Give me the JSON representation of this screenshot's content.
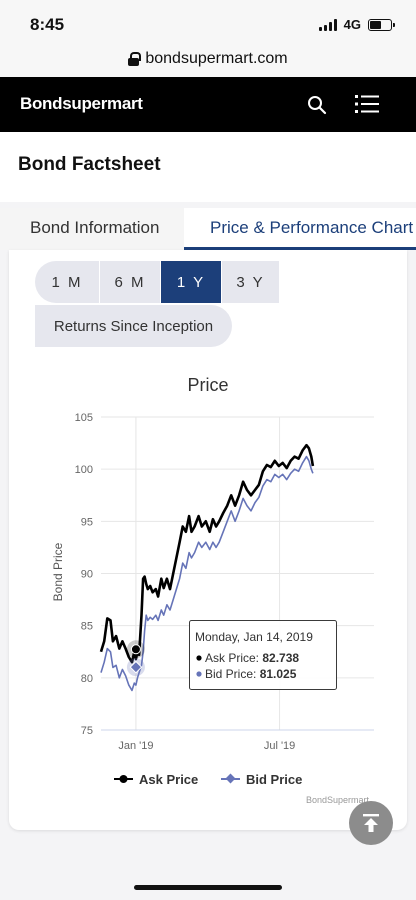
{
  "status": {
    "time": "8:45",
    "network": "4G"
  },
  "browser": {
    "url": "bondsupermart.com"
  },
  "header": {
    "logo": "Bondsupermart"
  },
  "page": {
    "title": "Bond Factsheet"
  },
  "tabs": [
    {
      "label": "Bond Information",
      "active": false
    },
    {
      "label": "Price & Performance Chart",
      "active": true
    }
  ],
  "periods": [
    {
      "label": "1 M",
      "active": false
    },
    {
      "label": "6 M",
      "active": false
    },
    {
      "label": "1 Y",
      "active": true
    },
    {
      "label": "3 Y",
      "active": false
    },
    {
      "label": "Returns Since Inception",
      "active": false
    }
  ],
  "tooltip": {
    "date": "Monday, Jan 14, 2019",
    "ask_label": "Ask Price: ",
    "ask_value": "82.738",
    "bid_label": "Bid Price: ",
    "bid_value": "81.025"
  },
  "watermark": "BondSupermart",
  "colors": {
    "ask": "#000000",
    "bid": "#6674b8",
    "accent": "#1c3f7a"
  },
  "chart_data": {
    "type": "line",
    "title": "Price",
    "ylabel": "Bond Price",
    "ylim": [
      75,
      105
    ],
    "yticks": [
      75,
      80,
      85,
      90,
      95,
      100,
      105
    ],
    "xtick_labels": [
      "Jan '19",
      "Jul '19"
    ],
    "xlim_days": [
      -44,
      300
    ],
    "xtick_days": [
      0,
      181
    ],
    "legend_position": "bottom",
    "series": [
      {
        "name": "Ask Price",
        "color": "#000000",
        "points": [
          [
            -44,
            82.5
          ],
          [
            -40,
            83.5
          ],
          [
            -36,
            85.7
          ],
          [
            -32,
            85.5
          ],
          [
            -29,
            83.5
          ],
          [
            -25,
            84
          ],
          [
            -21,
            82.8
          ],
          [
            -17,
            83.5
          ],
          [
            -13,
            82.8
          ],
          [
            -9,
            82
          ],
          [
            -5,
            81.5
          ],
          [
            -2,
            82.5
          ],
          [
            0,
            81.8
          ],
          [
            2,
            82.5
          ],
          [
            4,
            82.2
          ],
          [
            7,
            86
          ],
          [
            9,
            89.5
          ],
          [
            11,
            89.7
          ],
          [
            13,
            89
          ],
          [
            15,
            88.5
          ],
          [
            18,
            88.8
          ],
          [
            21,
            88.2
          ],
          [
            25,
            88.5
          ],
          [
            28,
            87.8
          ],
          [
            32,
            89.5
          ],
          [
            35,
            88.6
          ],
          [
            39,
            89.5
          ],
          [
            43,
            88.5
          ],
          [
            47,
            90
          ],
          [
            51,
            91.5
          ],
          [
            55,
            93
          ],
          [
            59,
            94.5
          ],
          [
            63,
            94
          ],
          [
            67,
            95.5
          ],
          [
            70,
            94
          ],
          [
            74,
            94.5
          ],
          [
            79,
            95.5
          ],
          [
            83,
            94.5
          ],
          [
            88,
            95
          ],
          [
            93,
            94
          ],
          [
            97,
            95.2
          ],
          [
            101,
            94.5
          ],
          [
            105,
            95
          ],
          [
            110,
            95.8
          ],
          [
            115,
            96.5
          ],
          [
            120,
            97.5
          ],
          [
            125,
            96.5
          ],
          [
            130,
            97.5
          ],
          [
            135,
            98.8
          ],
          [
            140,
            98
          ],
          [
            145,
            97.5
          ],
          [
            150,
            98
          ],
          [
            155,
            98.5
          ],
          [
            160,
            99.8
          ],
          [
            165,
            100.4
          ],
          [
            170,
            100.2
          ],
          [
            175,
            100.8
          ],
          [
            180,
            100.3
          ],
          [
            185,
            100.6
          ],
          [
            190,
            100.1
          ],
          [
            195,
            100.8
          ],
          [
            200,
            101.2
          ],
          [
            205,
            101
          ],
          [
            210,
            101.8
          ],
          [
            215,
            102.3
          ],
          [
            218,
            102
          ],
          [
            221,
            101.2
          ],
          [
            223,
            100.3
          ]
        ]
      },
      {
        "name": "Bid Price",
        "color": "#6674b8",
        "points": [
          [
            -44,
            80.5
          ],
          [
            -40,
            81.5
          ],
          [
            -36,
            82.8
          ],
          [
            -32,
            82.5
          ],
          [
            -29,
            81
          ],
          [
            -25,
            81.2
          ],
          [
            -21,
            80
          ],
          [
            -17,
            80.8
          ],
          [
            -13,
            80.2
          ],
          [
            -9,
            79.3
          ],
          [
            -5,
            78.8
          ],
          [
            -2,
            79.5
          ],
          [
            0,
            79.3
          ],
          [
            2,
            80
          ],
          [
            4,
            80.5
          ],
          [
            7,
            81.2
          ],
          [
            9,
            82.5
          ],
          [
            11,
            84.5
          ],
          [
            13,
            86
          ],
          [
            15,
            85.5
          ],
          [
            18,
            85.8
          ],
          [
            21,
            85.6
          ],
          [
            25,
            86
          ],
          [
            28,
            85.5
          ],
          [
            32,
            86.5
          ],
          [
            35,
            86
          ],
          [
            39,
            87
          ],
          [
            43,
            86.5
          ],
          [
            47,
            87.5
          ],
          [
            51,
            88.5
          ],
          [
            55,
            89.5
          ],
          [
            59,
            91
          ],
          [
            63,
            90.5
          ],
          [
            67,
            92
          ],
          [
            70,
            91.5
          ],
          [
            74,
            92
          ],
          [
            79,
            93
          ],
          [
            83,
            92.5
          ],
          [
            88,
            93
          ],
          [
            93,
            92.3
          ],
          [
            97,
            93
          ],
          [
            101,
            92.5
          ],
          [
            105,
            93
          ],
          [
            110,
            94
          ],
          [
            115,
            95
          ],
          [
            120,
            96
          ],
          [
            125,
            95
          ],
          [
            130,
            96
          ],
          [
            135,
            97.2
          ],
          [
            140,
            96.5
          ],
          [
            145,
            96
          ],
          [
            150,
            96.8
          ],
          [
            155,
            97.3
          ],
          [
            160,
            98.4
          ],
          [
            165,
            99
          ],
          [
            170,
            98.8
          ],
          [
            175,
            99.5
          ],
          [
            180,
            99.2
          ],
          [
            185,
            99.5
          ],
          [
            190,
            99
          ],
          [
            195,
            99.6
          ],
          [
            200,
            100
          ],
          [
            205,
            99.8
          ],
          [
            210,
            100.6
          ],
          [
            215,
            101.2
          ],
          [
            218,
            100.8
          ],
          [
            221,
            100
          ],
          [
            223,
            99.6
          ]
        ]
      }
    ],
    "highlight_day": 0,
    "highlight_values": {
      "ask": 82.738,
      "bid": 81.025
    }
  }
}
